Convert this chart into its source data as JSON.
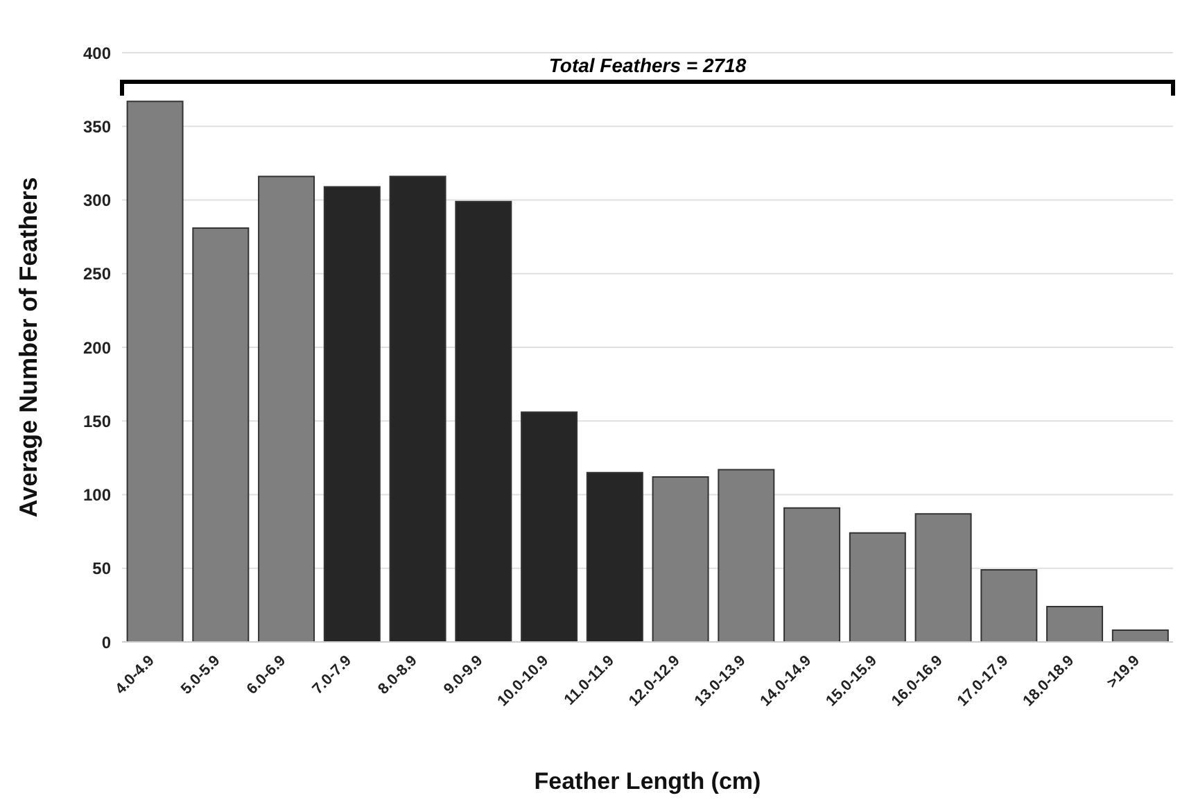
{
  "chart_data": {
    "type": "bar",
    "xlabel": "Feather Length (cm)",
    "ylabel": "Average Number of Feathers",
    "categories": [
      "4.0-4.9",
      "5.0-5.9",
      "6.0-6.9",
      "7.0-7.9",
      "8.0-8.9",
      "9.0-9.9",
      "10.0-10.9",
      "11.0-11.9",
      "12.0-12.9",
      "13.0-13.9",
      "14.0-14.9",
      "15.0-15.9",
      "16.0-16.9",
      "17.0-17.9",
      "18.0-18.9",
      ">19.9"
    ],
    "values": [
      367,
      281,
      316,
      309,
      316,
      299,
      156,
      115,
      112,
      117,
      91,
      74,
      87,
      49,
      24,
      8
    ],
    "colors": [
      "#7f7f7f",
      "#7f7f7f",
      "#7f7f7f",
      "#262626",
      "#262626",
      "#262626",
      "#262626",
      "#262626",
      "#7f7f7f",
      "#7f7f7f",
      "#7f7f7f",
      "#7f7f7f",
      "#7f7f7f",
      "#7f7f7f",
      "#7f7f7f",
      "#7f7f7f"
    ],
    "ylim": [
      0,
      400
    ],
    "yticks": [
      0,
      50,
      100,
      150,
      200,
      250,
      300,
      350,
      400
    ],
    "grid": "y",
    "annotations": [
      "Total Feathers = 2718"
    ]
  }
}
